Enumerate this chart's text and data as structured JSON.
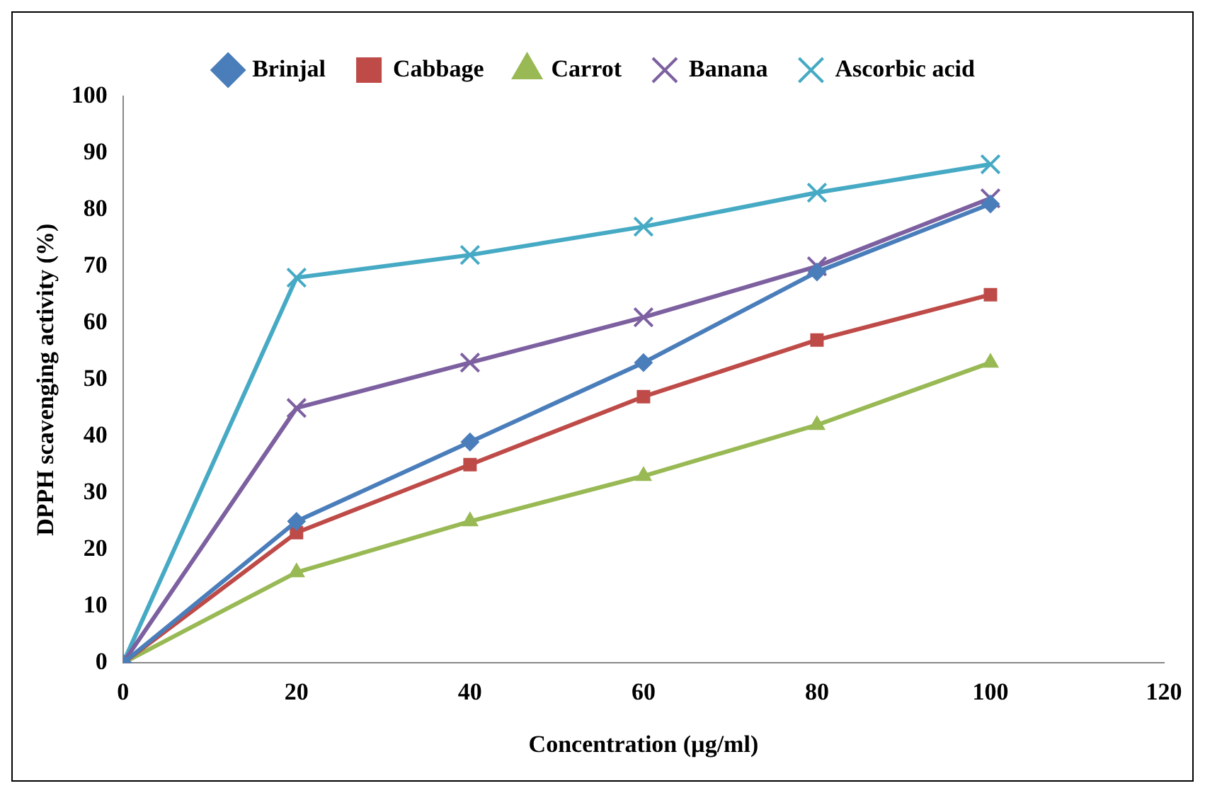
{
  "chart_data": {
    "type": "line",
    "xlabel": "Concentration (µg/ml)",
    "ylabel": "DPPH scavenging activity (%)",
    "x": [
      0,
      20,
      40,
      60,
      80,
      100
    ],
    "series": [
      {
        "name": "Brinjal",
        "color": "#4a7ebb",
        "marker": "diamond",
        "values": [
          0,
          25,
          39,
          53,
          69,
          81
        ]
      },
      {
        "name": "Cabbage",
        "color": "#be4b48",
        "marker": "square",
        "values": [
          0,
          23,
          35,
          47,
          57,
          65
        ]
      },
      {
        "name": "Carrot",
        "color": "#98b954",
        "marker": "triangle",
        "values": [
          0,
          16,
          25,
          33,
          42,
          53
        ]
      },
      {
        "name": "Banana",
        "color": "#7d60a0",
        "marker": "cross",
        "values": [
          0,
          45,
          53,
          61,
          70,
          82
        ]
      },
      {
        "name": "Ascorbic acid",
        "color": "#46aac5",
        "marker": "cross",
        "values": [
          0,
          68,
          72,
          77,
          83,
          88
        ]
      }
    ],
    "xlim": [
      0,
      120
    ],
    "xticks": [
      0,
      20,
      40,
      60,
      80,
      100,
      120
    ],
    "ylim": [
      0,
      100
    ],
    "yticks": [
      0,
      10,
      20,
      30,
      40,
      50,
      60,
      70,
      80,
      90,
      100
    ],
    "grid": false,
    "legend": "top",
    "line_style": "solid"
  }
}
